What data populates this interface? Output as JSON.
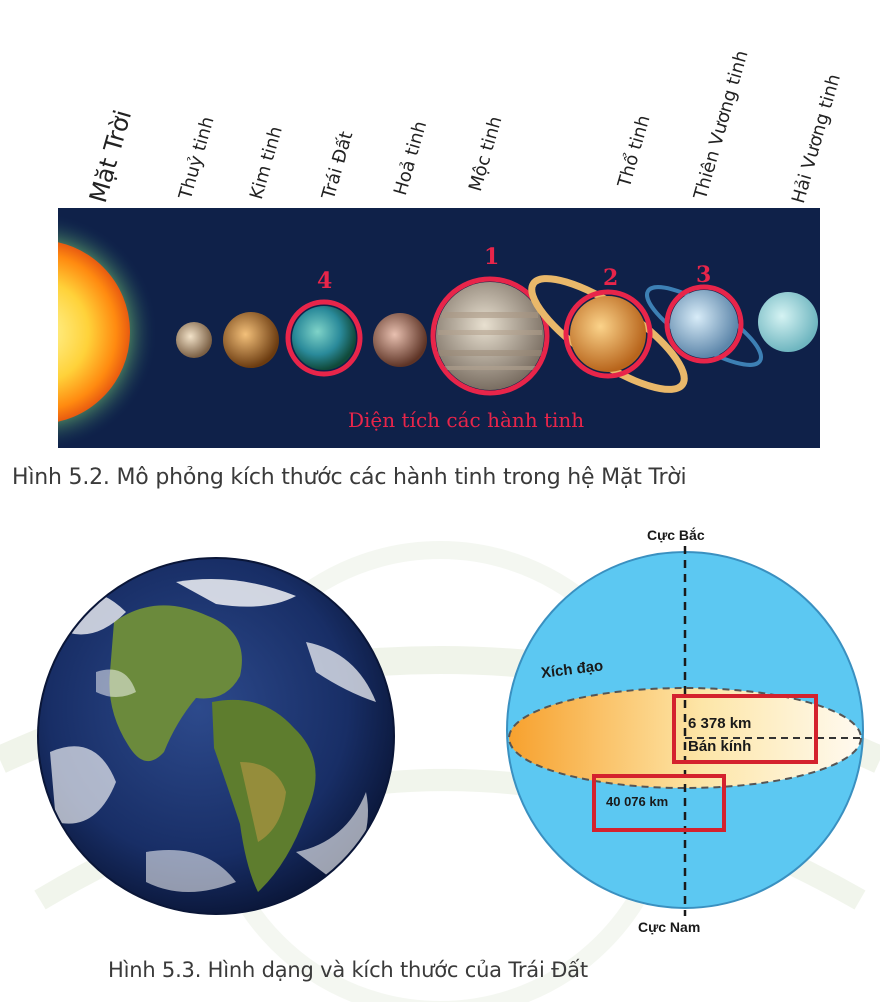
{
  "planet_labels": [
    "Mặt Trời",
    "Thuỷ tinh",
    "Kim tinh",
    "Trái Đất",
    "Hoả tinh",
    "Mộc tinh",
    "Thổ tinh",
    "Thiên Vương tinh",
    "Hải Vương tinh"
  ],
  "highlight_numbers": [
    "1",
    "2",
    "3",
    "4"
  ],
  "strip_label": "Diện tích các hành tinh",
  "caption_1": "Hình 5.2. Mô phỏng kích thước các hành tinh trong hệ Mặt Trời",
  "caption_2": "Hình 5.3. Hình dạng và kích thước của Trái Đất",
  "diagram": {
    "north_pole": "Cực Bắc",
    "south_pole": "Cực Nam",
    "equator": "Xích đạo",
    "radius_value": "6 378 km",
    "radius_label": "Bán kính",
    "circumference": "40 076 km"
  },
  "colors": {
    "highlight_red": "#e8254a",
    "strip_bg": "#0f2149",
    "sphere_blue": "#5cc8f2",
    "equator_fill": "#f7b445"
  }
}
